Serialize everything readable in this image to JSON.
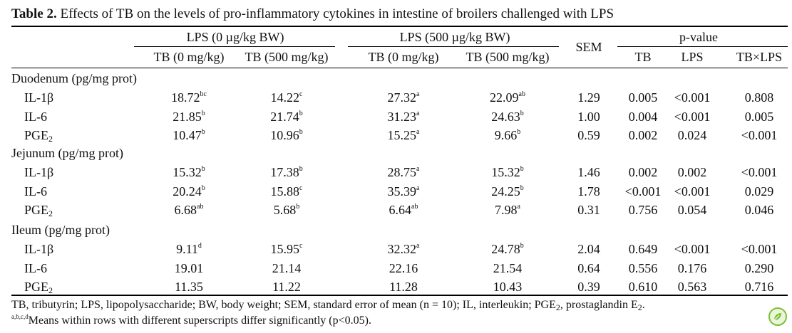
{
  "caption": {
    "label": "Table 2.",
    "text": " Effects of TB on the levels of pro-inflammatory cytokines in intestine of broilers challenged with LPS"
  },
  "headers": {
    "group1": "LPS (0 µg/kg BW)",
    "group2": "LPS (500 µg/kg BW)",
    "sem": "SEM",
    "pvalue": "p-value",
    "cols": [
      "TB (0 mg/kg)",
      "TB (500 mg/kg)",
      "TB (0 mg/kg)",
      "TB (500 mg/kg)"
    ],
    "pcols": [
      "TB",
      "LPS",
      "TB×LPS"
    ]
  },
  "sections": [
    {
      "title": "Duodenum (pg/mg prot)",
      "rows": [
        {
          "name": "IL-1β",
          "sub": "",
          "vals": [
            [
              "18.72",
              "bc"
            ],
            [
              "14.22",
              "c"
            ],
            [
              "27.32",
              "a"
            ],
            [
              "22.09",
              "ab"
            ]
          ],
          "sem": "1.29",
          "p": [
            "0.005",
            "<0.001",
            "0.808"
          ]
        },
        {
          "name": "IL-6",
          "sub": "",
          "vals": [
            [
              "21.85",
              "b"
            ],
            [
              "21.74",
              "b"
            ],
            [
              "31.23",
              "a"
            ],
            [
              "24.63",
              "b"
            ]
          ],
          "sem": "1.00",
          "p": [
            "0.004",
            "<0.001",
            "0.005"
          ]
        },
        {
          "name": "PGE",
          "sub": "2",
          "vals": [
            [
              "10.47",
              "b"
            ],
            [
              "10.96",
              "b"
            ],
            [
              "15.25",
              "a"
            ],
            [
              "9.66",
              "b"
            ]
          ],
          "sem": "0.59",
          "p": [
            "0.002",
            "0.024",
            "<0.001"
          ]
        }
      ]
    },
    {
      "title": "Jejunum (pg/mg prot)",
      "rows": [
        {
          "name": "IL-1β",
          "sub": "",
          "vals": [
            [
              "15.32",
              "b"
            ],
            [
              "17.38",
              "b"
            ],
            [
              "28.75",
              "a"
            ],
            [
              "15.32",
              "b"
            ]
          ],
          "sem": "1.46",
          "p": [
            "0.002",
            "0.002",
            "<0.001"
          ]
        },
        {
          "name": "IL-6",
          "sub": "",
          "vals": [
            [
              "20.24",
              "b"
            ],
            [
              "15.88",
              "c"
            ],
            [
              "35.39",
              "a"
            ],
            [
              "24.25",
              "b"
            ]
          ],
          "sem": "1.78",
          "p": [
            "<0.001",
            "<0.001",
            "0.029"
          ]
        },
        {
          "name": "PGE",
          "sub": "2",
          "vals": [
            [
              "6.68",
              "ab"
            ],
            [
              "5.68",
              "b"
            ],
            [
              "6.64",
              "ab"
            ],
            [
              "7.98",
              "a"
            ]
          ],
          "sem": "0.31",
          "p": [
            "0.756",
            "0.054",
            "0.046"
          ]
        }
      ]
    },
    {
      "title": "Ileum (pg/mg prot)",
      "rows": [
        {
          "name": "IL-1β",
          "sub": "",
          "vals": [
            [
              "9.11",
              "d"
            ],
            [
              "15.95",
              "c"
            ],
            [
              "32.32",
              "a"
            ],
            [
              "24.78",
              "b"
            ]
          ],
          "sem": "2.04",
          "p": [
            "0.649",
            "<0.001",
            "<0.001"
          ]
        },
        {
          "name": "IL-6",
          "sub": "",
          "vals": [
            [
              "19.01",
              ""
            ],
            [
              "21.14",
              ""
            ],
            [
              "22.16",
              ""
            ],
            [
              "21.54",
              ""
            ]
          ],
          "sem": "0.64",
          "p": [
            "0.556",
            "0.176",
            "0.290"
          ]
        },
        {
          "name": "PGE",
          "sub": "2",
          "vals": [
            [
              "11.35",
              ""
            ],
            [
              "11.22",
              ""
            ],
            [
              "11.28",
              ""
            ],
            [
              "10.43",
              ""
            ]
          ],
          "sem": "0.39",
          "p": [
            "0.610",
            "0.563",
            "0.716"
          ]
        }
      ]
    }
  ],
  "footnotes": {
    "line1_a": "TB, tributyrin; LPS, lipopolysaccharide; BW, body weight; SEM, standard error of mean (n = 10); IL, interleukin; PGE",
    "line1_sub": "2",
    "line1_b": ", prostaglandin E",
    "line1_sub2": "2",
    "line1_c": ".",
    "line2_sup": "a,b,c,d",
    "line2": "Means within rows with different superscripts differ significantly (p<0.05)."
  },
  "badge_icon": "leaf-icon",
  "colors": {
    "badge_ring": "#7cbf3a",
    "badge_fill": "#eaf6d8"
  }
}
